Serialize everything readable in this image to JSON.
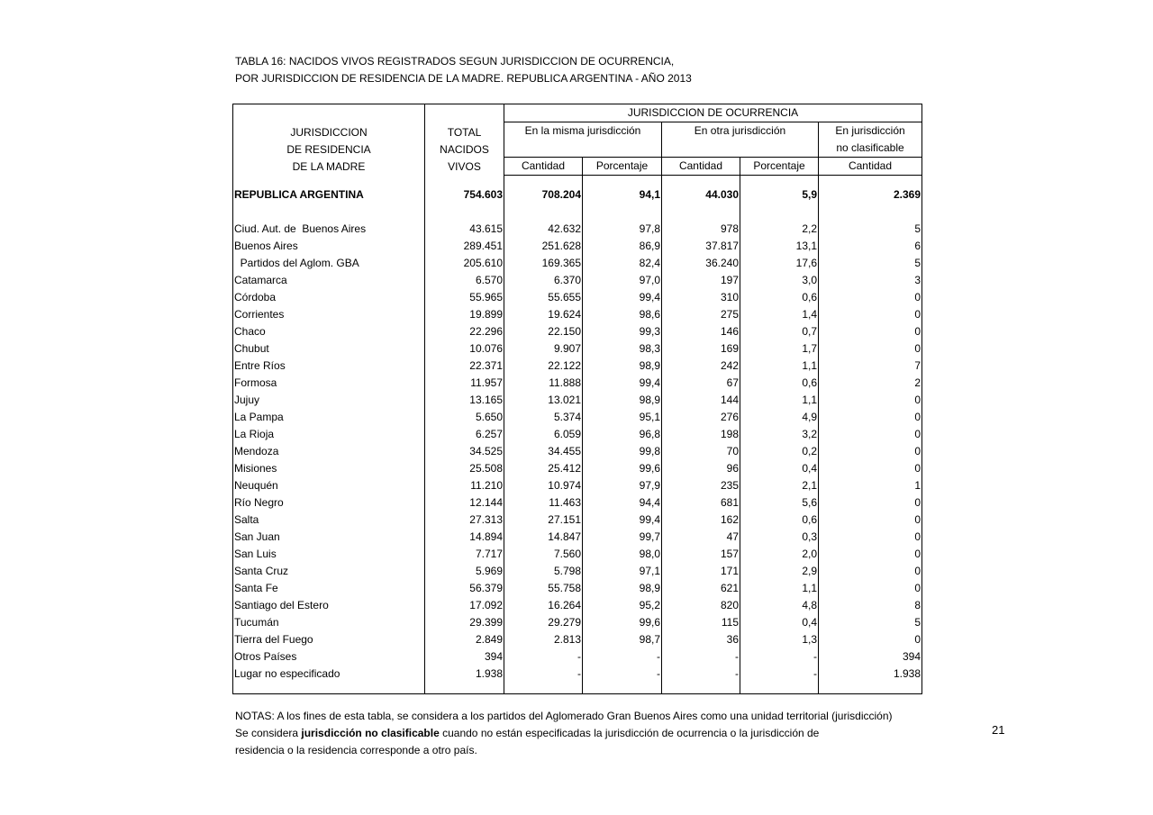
{
  "title_line1": "TABLA 16: NACIDOS VIVOS REGISTRADOS SEGUN  JURISDICCION DE OCURRENCIA,",
  "title_line2": "POR JURISDICCION  DE RESIDENCIA DE LA MADRE. REPUBLICA ARGENTINA - AÑO 2013",
  "header": {
    "col0": [
      "JURISDICCION",
      "DE RESIDENCIA",
      "DE LA MADRE"
    ],
    "col1": [
      "TOTAL",
      "NACIDOS",
      "VIVOS"
    ],
    "ocurrencia": "JURISDICCION DE OCURRENCIA",
    "misma": "En la misma jurisdicción",
    "otra": "En otra jurisdicción",
    "noclas": [
      "En jurisdicción",
      "no clasificable"
    ],
    "sub": [
      "Cantidad",
      "Porcentaje",
      "Cantidad",
      "Porcentaje",
      "Cantidad"
    ]
  },
  "total_row": [
    "REPUBLICA ARGENTINA",
    "754.603",
    "708.204",
    "94,1",
    "44.030",
    "5,9",
    "2.369"
  ],
  "rows": [
    [
      "Ciud. Aut. de  Buenos Aires",
      "43.615",
      "42.632",
      "97,8",
      "978",
      "2,2",
      "5"
    ],
    [
      "Buenos Aires",
      "289.451",
      "251.628",
      "86,9",
      "37.817",
      "13,1",
      "6"
    ],
    [
      "  Partidos del Aglom. GBA",
      "205.610",
      "169.365",
      "82,4",
      "36.240",
      "17,6",
      "5"
    ],
    [
      "Catamarca",
      "6.570",
      "6.370",
      "97,0",
      "197",
      "3,0",
      "3"
    ],
    [
      "Córdoba",
      "55.965",
      "55.655",
      "99,4",
      "310",
      "0,6",
      "0"
    ],
    [
      "Corrientes",
      "19.899",
      "19.624",
      "98,6",
      "275",
      "1,4",
      "0"
    ],
    [
      "Chaco",
      "22.296",
      "22.150",
      "99,3",
      "146",
      "0,7",
      "0"
    ],
    [
      "Chubut",
      "10.076",
      "9.907",
      "98,3",
      "169",
      "1,7",
      "0"
    ],
    [
      "Entre Ríos",
      "22.371",
      "22.122",
      "98,9",
      "242",
      "1,1",
      "7"
    ],
    [
      "Formosa",
      "11.957",
      "11.888",
      "99,4",
      "67",
      "0,6",
      "2"
    ],
    [
      "Jujuy",
      "13.165",
      "13.021",
      "98,9",
      "144",
      "1,1",
      "0"
    ],
    [
      "La Pampa",
      "5.650",
      "5.374",
      "95,1",
      "276",
      "4,9",
      "0"
    ],
    [
      "La Rioja",
      "6.257",
      "6.059",
      "96,8",
      "198",
      "3,2",
      "0"
    ],
    [
      "Mendoza",
      "34.525",
      "34.455",
      "99,8",
      "70",
      "0,2",
      "0"
    ],
    [
      "Misiones",
      "25.508",
      "25.412",
      "99,6",
      "96",
      "0,4",
      "0"
    ],
    [
      "Neuquén",
      "11.210",
      "10.974",
      "97,9",
      "235",
      "2,1",
      "1"
    ],
    [
      "Río Negro",
      "12.144",
      "11.463",
      "94,4",
      "681",
      "5,6",
      "0"
    ],
    [
      "Salta",
      "27.313",
      "27.151",
      "99,4",
      "162",
      "0,6",
      "0"
    ],
    [
      "San Juan",
      "14.894",
      "14.847",
      "99,7",
      "47",
      "0,3",
      "0"
    ],
    [
      "San Luis",
      "7.717",
      "7.560",
      "98,0",
      "157",
      "2,0",
      "0"
    ],
    [
      "Santa Cruz",
      "5.969",
      "5.798",
      "97,1",
      "171",
      "2,9",
      "0"
    ],
    [
      "Santa Fe",
      "56.379",
      "55.758",
      "98,9",
      "621",
      "1,1",
      "0"
    ],
    [
      "Santiago del Estero",
      "17.092",
      "16.264",
      "95,2",
      "820",
      "4,8",
      "8"
    ],
    [
      "Tucumán",
      "29.399",
      "29.279",
      "99,6",
      "115",
      "0,4",
      "5"
    ],
    [
      "Tierra del Fuego",
      "2.849",
      "2.813",
      "98,7",
      "36",
      "1,3",
      "0"
    ],
    [
      "Otros Países",
      "394",
      "-",
      "-",
      "-",
      "-",
      "394"
    ],
    [
      "Lugar no especificado",
      "1.938",
      "-",
      "-",
      "-",
      "-",
      "1.938"
    ]
  ],
  "notes": {
    "line1": "NOTAS: A los fines de esta tabla, se considera a los partidos del Aglomerado Gran Buenos Aires como una unidad territorial (jurisdicción)",
    "line2_pre": "Se considera ",
    "line2_bold": "jurisdicción no clasificable",
    "line2_post": " cuando no están especificadas la jurisdicción de ocurrencia o la jurisdicción de",
    "line3": "residencia o la residencia corresponde a otro país."
  },
  "page_number": "21"
}
